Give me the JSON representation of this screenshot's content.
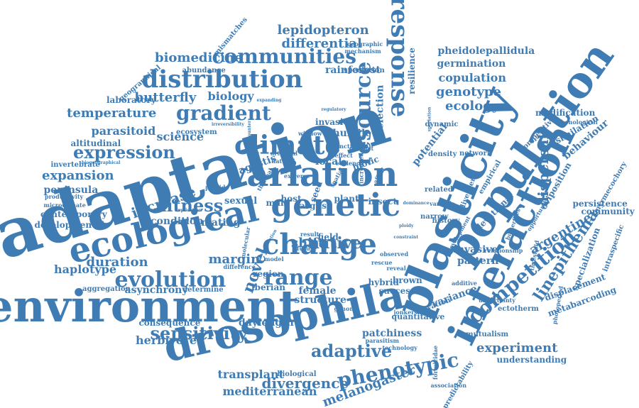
{
  "color": "#3f7cb4",
  "words": [
    {
      "t": "adaptation"
    },
    {
      "t": "plasticity"
    },
    {
      "t": "population"
    },
    {
      "t": "interaction"
    },
    {
      "t": "environment"
    },
    {
      "t": "drosophila"
    },
    {
      "t": "variation"
    },
    {
      "t": "genetic"
    },
    {
      "t": "ecological"
    },
    {
      "t": "change"
    },
    {
      "t": "distribution"
    },
    {
      "t": "response"
    },
    {
      "t": "resource"
    },
    {
      "t": "climate"
    },
    {
      "t": "range"
    },
    {
      "t": "evolution"
    },
    {
      "t": "communities"
    },
    {
      "t": "competition"
    },
    {
      "t": "linepithema"
    },
    {
      "t": "gradient"
    },
    {
      "t": "phenotypic"
    },
    {
      "t": "adaptive"
    },
    {
      "t": "sensitivity"
    },
    {
      "t": "expression"
    },
    {
      "t": "fitness"
    },
    {
      "t": "novel"
    },
    {
      "t": "dispersal"
    },
    {
      "t": "argentine"
    },
    {
      "t": "experiment"
    },
    {
      "t": "divergence"
    },
    {
      "t": "melanogaster"
    },
    {
      "t": "genotype"
    },
    {
      "t": "ecology"
    },
    {
      "t": "copulation"
    },
    {
      "t": "germination"
    },
    {
      "t": "pheidolepallidula"
    },
    {
      "t": "lepidopteron"
    },
    {
      "t": "differential"
    },
    {
      "t": "biomedicine"
    },
    {
      "t": "butterfly"
    },
    {
      "t": "biology"
    },
    {
      "t": "laboratory"
    },
    {
      "t": "rainforest"
    },
    {
      "t": "selection"
    },
    {
      "t": "resilience"
    },
    {
      "t": "temperature"
    },
    {
      "t": "parasitoid"
    },
    {
      "t": "science"
    },
    {
      "t": "altitudinal"
    },
    {
      "t": "ecosystem"
    },
    {
      "t": "invasion"
    },
    {
      "t": "humile"
    },
    {
      "t": "potential"
    },
    {
      "t": "expansion"
    },
    {
      "t": "invertebrate"
    },
    {
      "t": "agestis"
    },
    {
      "t": "local"
    },
    {
      "t": "biotic"
    },
    {
      "t": "peninsula"
    },
    {
      "t": "increase"
    },
    {
      "t": "condition"
    },
    {
      "t": "host"
    },
    {
      "t": "native"
    },
    {
      "t": "shift"
    },
    {
      "t": "duration"
    },
    {
      "t": "margin"
    },
    {
      "t": "haplotype"
    },
    {
      "t": "pattern"
    },
    {
      "t": "invasive"
    },
    {
      "t": "variance"
    },
    {
      "t": "behaviour"
    },
    {
      "t": "modification"
    },
    {
      "t": "assimilation"
    },
    {
      "t": "oviposition"
    },
    {
      "t": "myrmecochory"
    },
    {
      "t": "persistence"
    },
    {
      "t": "community"
    },
    {
      "t": "specialization"
    },
    {
      "t": "displacement"
    },
    {
      "t": "metabarcoding"
    },
    {
      "t": "intraspecific"
    },
    {
      "t": "ectotherm"
    },
    {
      "t": "understanding"
    },
    {
      "t": "mutualism"
    },
    {
      "t": "herbivore"
    },
    {
      "t": "daylength"
    },
    {
      "t": "transplant"
    },
    {
      "t": "mediterranean"
    },
    {
      "t": "structure"
    },
    {
      "t": "hybrid"
    },
    {
      "t": "brown"
    },
    {
      "t": "success"
    },
    {
      "t": "patchiness"
    },
    {
      "t": "quantitative"
    },
    {
      "t": "female"
    },
    {
      "t": "iberian"
    },
    {
      "t": "region"
    },
    {
      "t": "asynchrony"
    },
    {
      "t": "determine"
    },
    {
      "t": "aggregation"
    },
    {
      "t": "consequence"
    },
    {
      "t": "contemporary"
    },
    {
      "t": "developmental"
    },
    {
      "t": "mating"
    },
    {
      "t": "sexual"
    },
    {
      "t": "male"
    },
    {
      "t": "field"
    },
    {
      "t": "seed"
    },
    {
      "t": "insect"
    },
    {
      "t": "plant"
    },
    {
      "t": "argus"
    },
    {
      "t": "mismatches"
    },
    {
      "t": "abundance"
    },
    {
      "t": "speciation"
    },
    {
      "t": "geographical"
    },
    {
      "t": "productivity"
    },
    {
      "t": "microclimate"
    },
    {
      "t": "elevational"
    },
    {
      "t": "competitive"
    },
    {
      "t": "network"
    },
    {
      "t": "photoperiod"
    },
    {
      "t": "opportunity"
    },
    {
      "t": "elevation"
    },
    {
      "t": "divergent"
    },
    {
      "t": "empirical"
    },
    {
      "t": "density"
    },
    {
      "t": "dynamic"
    },
    {
      "t": "window"
    },
    {
      "t": "artificial"
    },
    {
      "t": "natural"
    },
    {
      "t": "provide"
    },
    {
      "t": "related"
    },
    {
      "t": "history"
    },
    {
      "t": "variable"
    },
    {
      "t": "narrow"
    },
    {
      "t": "future"
    },
    {
      "t": "result"
    },
    {
      "t": "genome"
    },
    {
      "t": "model"
    },
    {
      "t": "difference"
    },
    {
      "t": "parasitism"
    },
    {
      "t": "technology"
    },
    {
      "t": "biological"
    },
    {
      "t": "formicidae"
    },
    {
      "t": "predictability"
    },
    {
      "t": "association"
    },
    {
      "t": "reveal"
    },
    {
      "t": "rescue"
    },
    {
      "t": "additive"
    },
    {
      "t": "phenological"
    },
    {
      "t": "geographic"
    },
    {
      "t": "mechanism"
    },
    {
      "t": "threshold"
    },
    {
      "t": "butterflies"
    },
    {
      "t": "relationship"
    },
    {
      "t": "irreversibility"
    },
    {
      "t": "encounter"
    },
    {
      "t": "expanding"
    },
    {
      "t": "biogeographical"
    },
    {
      "t": "regulatory"
    },
    {
      "t": "functional"
    },
    {
      "t": "affect"
    },
    {
      "t": "effect"
    },
    {
      "t": "distinct"
    },
    {
      "t": "evidence"
    },
    {
      "t": "increased"
    },
    {
      "t": "spatial"
    },
    {
      "t": "thermal"
    },
    {
      "t": "extreme"
    },
    {
      "t": "molecular"
    },
    {
      "t": "jonkershoek"
    },
    {
      "t": "development"
    },
    {
      "t": "uncertainty"
    },
    {
      "t": "observed"
    },
    {
      "t": "diversification"
    },
    {
      "t": "speciation"
    },
    {
      "t": "implication"
    },
    {
      "t": "ploidy"
    },
    {
      "t": "dominance"
    },
    {
      "t": "constraint"
    }
  ]
}
